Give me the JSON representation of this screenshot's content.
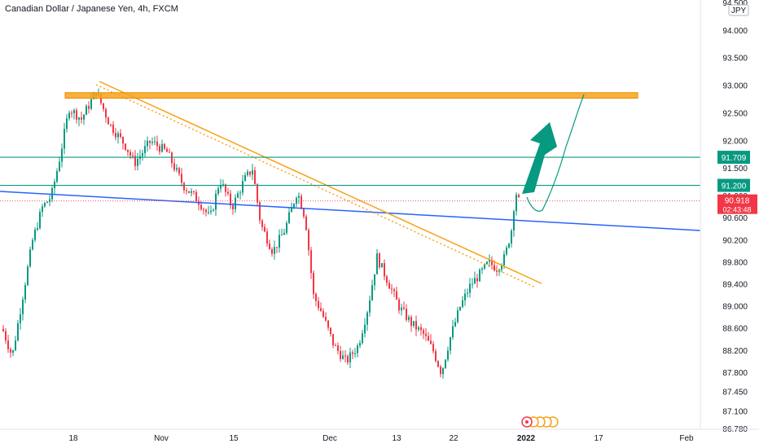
{
  "title": "Canadian Dollar / Japanese Yen, 4h, FXCM",
  "currency_badge": "JPY",
  "price_label": {
    "value": "90.918",
    "countdown": "02:43:48"
  },
  "chart_data": {
    "type": "candlestick",
    "title": "Canadian Dollar / Japanese Yen, 4h, FXCM",
    "y_ticks": [
      "94.500",
      "94.000",
      "93.500",
      "93.000",
      "92.500",
      "92.000",
      "91.500",
      "91.000",
      "90.600",
      "90.200",
      "89.800",
      "89.400",
      "89.000",
      "88.600",
      "88.200",
      "87.800",
      "87.450",
      "87.100",
      "86.780"
    ],
    "x_ticks": [
      "18",
      "Nov",
      "15",
      "Dec",
      "13",
      "22",
      "2022",
      "17",
      "Feb"
    ],
    "ylim": [
      86.78,
      94.5
    ],
    "last_price": 90.918,
    "levels": [
      {
        "value": 91.709,
        "label": "91.709",
        "color": "#089981"
      },
      {
        "value": 91.2,
        "label": "91.200",
        "color": "#089981"
      }
    ],
    "resistance_zone": [
      92.78,
      92.88
    ],
    "descending_trendline": {
      "color": "#f7a31a"
    },
    "support_line": {
      "color": "#2962ff"
    },
    "projection_arrow": {
      "color": "#089981"
    },
    "up_color": "#089981",
    "down_color": "#f23645",
    "event_markers": 5
  }
}
